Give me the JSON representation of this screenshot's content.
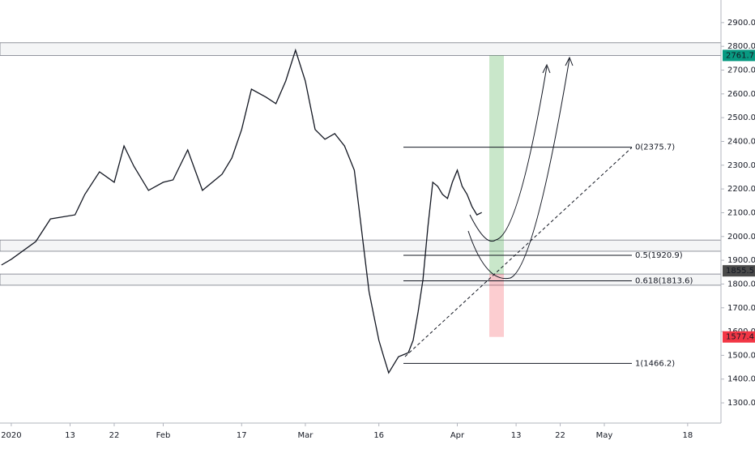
{
  "chart_data": {
    "type": "line",
    "x": [
      -2,
      0,
      5,
      8,
      13,
      15,
      18,
      21,
      23,
      25,
      28,
      31,
      33,
      36,
      39,
      43,
      45,
      47,
      49,
      52,
      54,
      56,
      58,
      60,
      62,
      64,
      66,
      68,
      70,
      71,
      72,
      73,
      74,
      75,
      76,
      77,
      78,
      79,
      81,
      82,
      83,
      84,
      85,
      86,
      87,
      88,
      89,
      90,
      91,
      92,
      93,
      94,
      95,
      96
    ],
    "series": [
      {
        "color": "#131722",
        "values": [
          1880,
          1904,
          1979,
          2074,
          2091,
          2177,
          2272,
          2228,
          2381,
          2296,
          2194,
          2228,
          2238,
          2364,
          2194,
          2262,
          2330,
          2450,
          2620,
          2586,
          2559,
          2654,
          2784,
          2654,
          2450,
          2409,
          2433,
          2381,
          2279,
          2108,
          1938,
          1767,
          1665,
          1563,
          1494,
          1426,
          1460,
          1494,
          1511,
          1563,
          1682,
          1818,
          2040,
          2228,
          2211,
          2177,
          2160,
          2228,
          2279,
          2211,
          2177,
          2126,
          2091,
          2101
        ]
      }
    ],
    "xlim": [
      -2.3,
      144.8
    ],
    "xticks": [
      {
        "value": 0,
        "label": "2020"
      },
      {
        "value": 12,
        "label": "13"
      },
      {
        "value": 21,
        "label": "22"
      },
      {
        "value": 31,
        "label": "Feb"
      },
      {
        "value": 47,
        "label": "17"
      },
      {
        "value": 60,
        "label": "Mar"
      },
      {
        "value": 75,
        "label": "16"
      },
      {
        "value": 91,
        "label": "Apr"
      },
      {
        "value": 103,
        "label": "13"
      },
      {
        "value": 112,
        "label": "22"
      },
      {
        "value": 121,
        "label": "May"
      },
      {
        "value": 138,
        "label": "18"
      }
    ],
    "ylim": [
      1215,
      2995
    ],
    "yticks": [
      {
        "value": 1300,
        "label": "1300.0"
      },
      {
        "value": 1400,
        "label": "1400.0"
      },
      {
        "value": 1500,
        "label": "1500.0"
      },
      {
        "value": 1600,
        "label": "1600.0"
      },
      {
        "value": 1700,
        "label": "1700.0"
      },
      {
        "value": 1800,
        "label": "1800.0"
      },
      {
        "value": 1900,
        "label": "1900.0"
      },
      {
        "value": 2000,
        "label": "2000.0"
      },
      {
        "value": 2100,
        "label": "2100.0"
      },
      {
        "value": 2200,
        "label": "2200.0"
      },
      {
        "value": 2300,
        "label": "2300.0"
      },
      {
        "value": 2400,
        "label": "2400.0"
      },
      {
        "value": 2500,
        "label": "2500.0"
      },
      {
        "value": 2600,
        "label": "2600.0"
      },
      {
        "value": 2700,
        "label": "2700.0"
      },
      {
        "value": 2800,
        "label": "2800.0"
      },
      {
        "value": 2900,
        "label": "2900.0"
      }
    ],
    "zones": [
      [
        2761.7,
        2815
      ],
      [
        1938,
        1985
      ],
      [
        1795,
        1842
      ]
    ],
    "fib": [
      {
        "label": "0(2375.7)",
        "price": 2375.7
      },
      {
        "label": "0.5(1920.9)",
        "price": 1920.9
      },
      {
        "label": "0.618(1813.6)",
        "price": 1813.6
      },
      {
        "label": "1(1466.2)",
        "price": 1466.2
      }
    ],
    "price_labels": [
      {
        "value": 2761.7,
        "color": "#089981"
      },
      {
        "value": 1855.5,
        "color": "#4a4a4a"
      },
      {
        "value": 1577.4,
        "color": "#f23645"
      }
    ],
    "target_box": [
      2761.7,
      1842
    ],
    "stop_box": [
      1842,
      1577.4
    ]
  }
}
